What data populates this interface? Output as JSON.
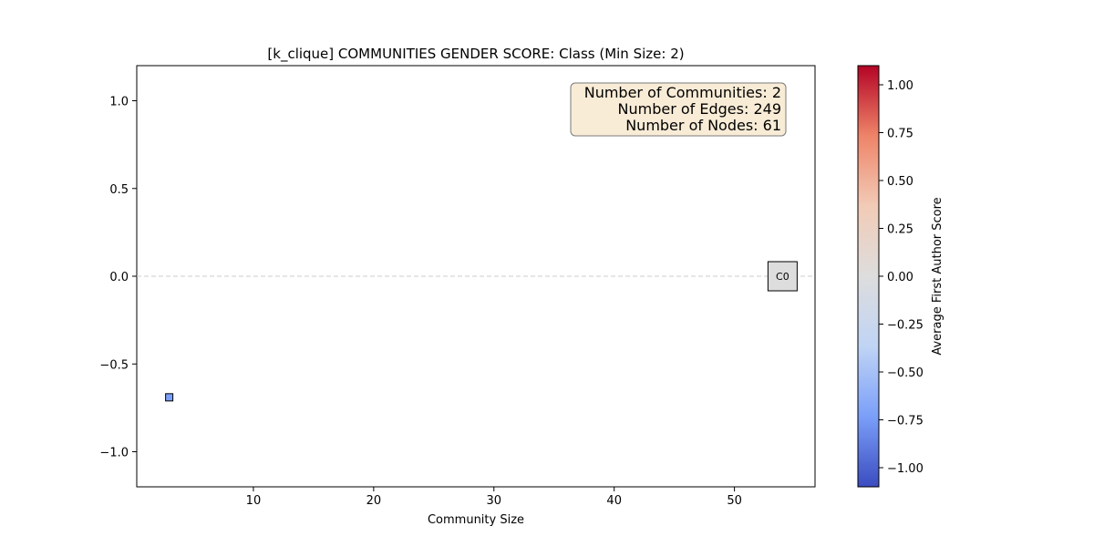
{
  "chart_data": {
    "type": "scatter",
    "title": "[k_clique] COMMUNITIES GENDER SCORE: Class (Min Size: 2)",
    "xlabel": "Community Size",
    "ylabel": "",
    "xlim": [
      0.3,
      56.7
    ],
    "ylim": [
      -1.2,
      1.2
    ],
    "xticks": [
      10,
      20,
      30,
      40,
      50
    ],
    "xtick_labels": [
      "10",
      "20",
      "30",
      "40",
      "50"
    ],
    "yticks": [
      -1.0,
      -0.5,
      0.0,
      0.5,
      1.0
    ],
    "ytick_labels": [
      "−1.0",
      "−0.5",
      "0.0",
      "0.5",
      "1.0"
    ],
    "reference_line": {
      "y": 0.0,
      "style": "dashed",
      "color": "#cccccc"
    },
    "points": [
      {
        "x": 3,
        "y": -0.69,
        "color": "#7b9ff9",
        "label": ""
      },
      {
        "x": 54,
        "y": 0.0,
        "color": "#dddddd",
        "label": "C0"
      }
    ],
    "info_box": {
      "lines": [
        "Number of Communities: 2",
        "Number of Edges: 249",
        "Number of Nodes: 61"
      ],
      "background": "#f9ecd7",
      "placement": "top-right"
    },
    "colorbar": {
      "label": "Average First Author Score",
      "range": [
        -1.1,
        1.1
      ],
      "ticks": [
        1.0,
        0.75,
        0.5,
        0.25,
        0.0,
        -0.25,
        -0.5,
        -0.75,
        -1.0
      ],
      "tick_labels": [
        "1.00",
        "0.75",
        "0.50",
        "0.25",
        "0.00",
        "−0.25",
        "−0.50",
        "−0.75",
        "−1.00"
      ],
      "colormap": "coolwarm",
      "stops": [
        "#3b4cc0",
        "#7b9ff9",
        "#c0d4f5",
        "#dddddd",
        "#f2cbb7",
        "#ee8468",
        "#b40426"
      ]
    }
  }
}
